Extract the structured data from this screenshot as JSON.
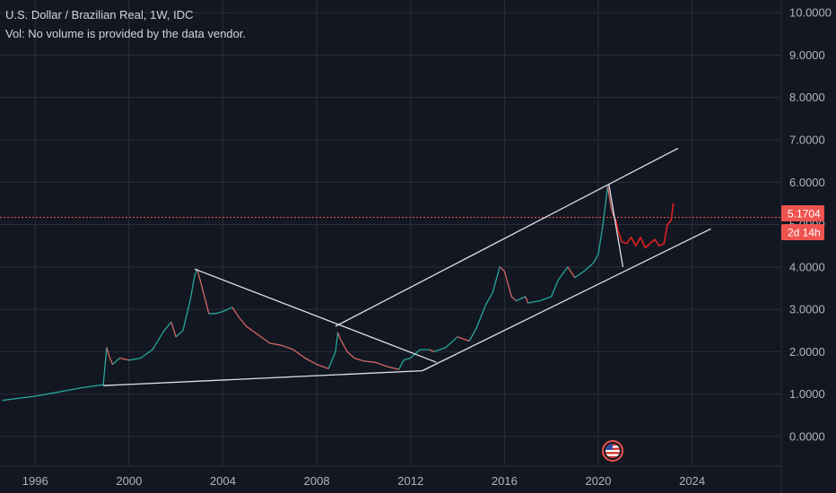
{
  "header": {
    "title": "U.S. Dollar / Brazilian Real, 1W, IDC",
    "vol_note": "Vol: No volume is provided by the data vendor."
  },
  "price_badge": {
    "value": "5.1704",
    "countdown": "2d 14h"
  },
  "colors": {
    "background": "#131722",
    "grid": "#2a2e39",
    "text": "#b2b5be",
    "up": "#26a69a",
    "down": "#ef5350",
    "trendline": "#e0e3eb",
    "projection": "#e02020",
    "price_line": "#ef5350"
  },
  "icons": {
    "flag": "us-flag-icon"
  },
  "chart_data": {
    "type": "line",
    "title": "U.S. Dollar / Brazilian Real, 1W, IDC",
    "xlabel": "",
    "ylabel": "",
    "x_ticks": [
      "1996",
      "2000",
      "2004",
      "2008",
      "2012",
      "2016",
      "2020",
      "2024"
    ],
    "y_ticks": [
      "0.0000",
      "1.0000",
      "2.0000",
      "3.0000",
      "4.0000",
      "5.0000",
      "6.0000",
      "7.0000",
      "8.0000",
      "9.0000",
      "10.0000"
    ],
    "ylim": [
      -0.7,
      10.3
    ],
    "xlim": [
      1994.5,
      2027.8
    ],
    "grid": true,
    "last_price": 5.1704,
    "series": [
      {
        "x": [
          1994.6,
          1996.0,
          1997.0,
          1998.0,
          1998.9,
          1999.05,
          1999.15,
          1999.3,
          1999.6,
          2000.0,
          2000.5,
          2001.0,
          2001.5,
          2001.8,
          2002.0,
          2002.3,
          2002.6,
          2002.8,
          2002.9,
          2003.1,
          2003.4,
          2003.7,
          2004.0,
          2004.4,
          2004.7,
          2005.0,
          2005.5,
          2006.0,
          2006.5,
          2007.0,
          2007.5,
          2008.0,
          2008.5,
          2008.8,
          2008.9,
          2009.0,
          2009.3,
          2009.6,
          2010.0,
          2010.5,
          2011.0,
          2011.5,
          2011.7,
          2012.0,
          2012.4,
          2012.8,
          2013.0,
          2013.5,
          2014.0,
          2014.5,
          2014.8,
          2015.2,
          2015.5,
          2015.8,
          2016.0,
          2016.3,
          2016.5,
          2016.9,
          2017.0,
          2017.5,
          2018.0,
          2018.3,
          2018.7,
          2019.0,
          2019.4,
          2019.8,
          2020.0,
          2020.2,
          2020.4,
          2020.55,
          2020.65,
          2020.75
        ],
        "y": [
          0.85,
          0.95,
          1.05,
          1.15,
          1.22,
          2.1,
          1.9,
          1.7,
          1.85,
          1.8,
          1.85,
          2.05,
          2.5,
          2.7,
          2.35,
          2.5,
          3.2,
          3.8,
          3.95,
          3.55,
          2.9,
          2.9,
          2.95,
          3.05,
          2.8,
          2.6,
          2.4,
          2.2,
          2.15,
          2.05,
          1.85,
          1.7,
          1.6,
          2.0,
          2.45,
          2.3,
          2.0,
          1.85,
          1.78,
          1.75,
          1.65,
          1.58,
          1.8,
          1.85,
          2.05,
          2.05,
          2.0,
          2.1,
          2.35,
          2.25,
          2.55,
          3.1,
          3.4,
          4.0,
          3.9,
          3.3,
          3.2,
          3.3,
          3.15,
          3.2,
          3.3,
          3.7,
          4.0,
          3.75,
          3.9,
          4.1,
          4.3,
          5.0,
          5.9,
          5.4,
          5.2,
          5.1
        ]
      },
      {
        "x": [
          2020.75,
          2020.85,
          2021.0,
          2021.2,
          2021.4,
          2021.6,
          2021.8,
          2022.0,
          2022.2,
          2022.4,
          2022.6,
          2022.8,
          2022.95,
          2023.1,
          2023.2
        ],
        "y": [
          5.1,
          4.85,
          4.6,
          4.55,
          4.7,
          4.5,
          4.7,
          4.45,
          4.55,
          4.65,
          4.5,
          4.55,
          5.0,
          5.1,
          5.5
        ]
      }
    ],
    "annotations": {
      "lines": [
        {
          "x1": 1998.9,
          "y1": 1.2,
          "x2": 2012.5,
          "y2": 1.55
        },
        {
          "x1": 2002.8,
          "y1": 3.95,
          "x2": 2013.1,
          "y2": 1.75
        },
        {
          "x1": 2012.5,
          "y1": 1.55,
          "x2": 2024.8,
          "y2": 4.9
        },
        {
          "x1": 2008.8,
          "y1": 2.6,
          "x2": 2023.4,
          "y2": 6.8
        },
        {
          "x1": 2020.45,
          "y1": 5.95,
          "x2": 2021.05,
          "y2": 4.0
        }
      ]
    }
  }
}
